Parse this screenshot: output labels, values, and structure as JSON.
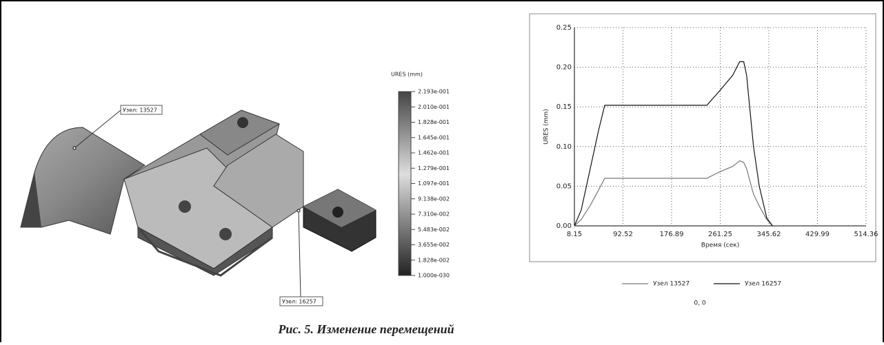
{
  "model": {
    "node_labels": [
      "Узел: 13527",
      "Узел: 16257"
    ],
    "colorbar": {
      "title": "URES (mm)",
      "labels": [
        "2.193e-001",
        "2.010e-001",
        "1.828e-001",
        "1.645e-001",
        "1.462e-001",
        "1.279e-001",
        "1.097e-001",
        "9.138e-002",
        "7.310e-002",
        "5.483e-002",
        "3.655e-002",
        "1.828e-002",
        "1.000e-030"
      ]
    }
  },
  "chart_data": {
    "type": "line",
    "xlabel": "Время (сек)",
    "ylabel": "URES (mm)",
    "x": [
      8.15,
      20,
      35,
      50,
      60.8,
      238,
      260,
      283,
      295,
      302,
      307,
      319,
      329,
      342,
      352
    ],
    "series": [
      {
        "name": "Узел 13527",
        "color": "#777777",
        "values": [
          0,
          0.008,
          0.025,
          0.045,
          0.06,
          0.06,
          0.068,
          0.075,
          0.082,
          0.08,
          0.072,
          0.04,
          0.025,
          0.008,
          0
        ]
      },
      {
        "name": "Узел 16257",
        "color": "#111111",
        "values": [
          0,
          0.02,
          0.07,
          0.12,
          0.152,
          0.152,
          0.17,
          0.19,
          0.207,
          0.207,
          0.19,
          0.1,
          0.05,
          0.01,
          0
        ]
      }
    ],
    "xlim": [
      8.15,
      514.36
    ],
    "xticks": [
      8.15,
      92.52,
      176.89,
      261.25,
      345.62,
      429.99,
      514.36
    ],
    "ylim": [
      0,
      0.25
    ],
    "yticks": [
      {
        "value": 0,
        "label": "0.00"
      },
      0.05,
      {
        "value": 0.1,
        "label": "0.10"
      },
      0.15,
      {
        "value": 0.2,
        "label": "0.20"
      },
      0.25
    ],
    "grid": true,
    "status": "0, 0"
  },
  "caption": "Рис. 5. Изменение перемещений"
}
